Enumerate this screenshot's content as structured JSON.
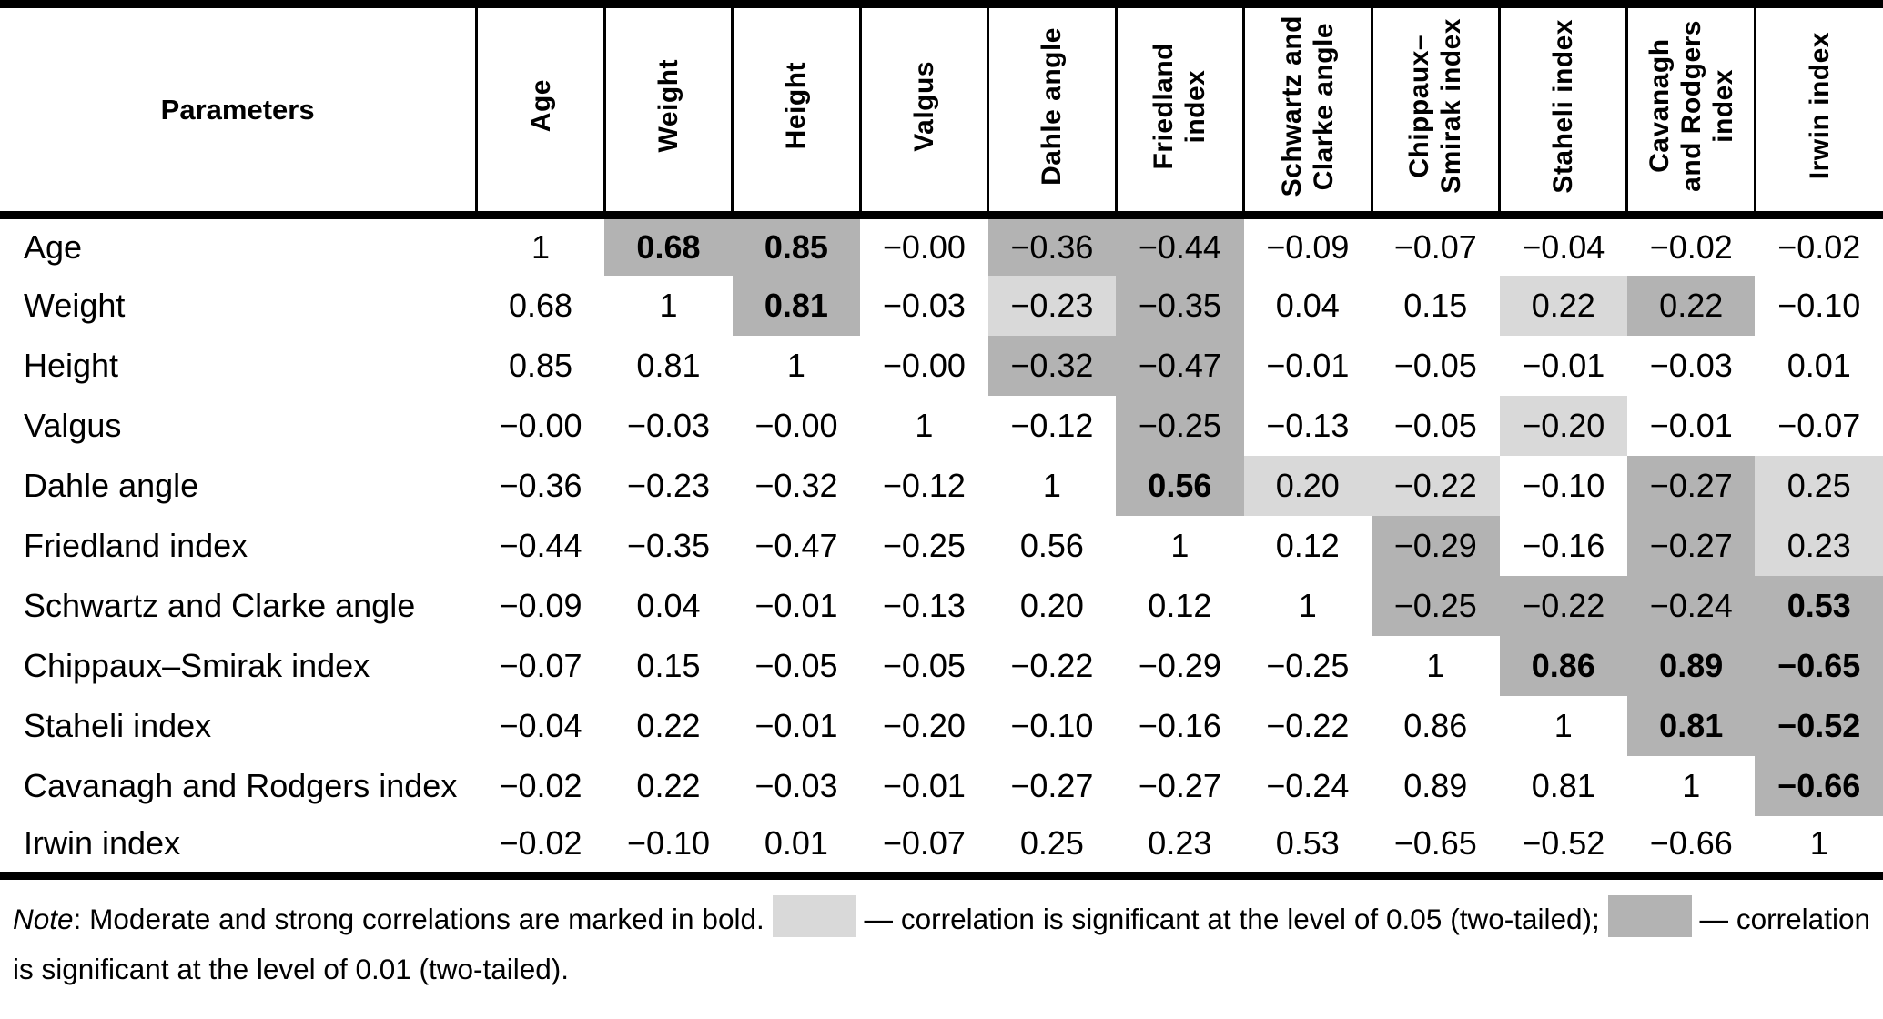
{
  "colors": {
    "sig05": "#d9d9d9",
    "sig01": "#b3b3b3",
    "border": "#000000",
    "text": "#000000",
    "background": "#ffffff"
  },
  "table": {
    "corner_header": "Parameters",
    "column_headers": [
      "Age",
      "Weight",
      "Height",
      "Valgus",
      "Dahle angle",
      "Friedland\nindex",
      "Schwartz and\nClarke angle",
      "Chippaux–\nSmirak index",
      "Staheli index",
      "Cavanagh\nand Rodgers\nindex",
      "Irwin index"
    ],
    "rows": [
      {
        "label": "Age",
        "cells": [
          {
            "v": "1"
          },
          {
            "v": "0.68",
            "b": true,
            "s": "p01"
          },
          {
            "v": "0.85",
            "b": true,
            "s": "p01"
          },
          {
            "v": "−0.00"
          },
          {
            "v": "−0.36",
            "s": "p01"
          },
          {
            "v": "−0.44",
            "s": "p01"
          },
          {
            "v": "−0.09"
          },
          {
            "v": "−0.07"
          },
          {
            "v": "−0.04"
          },
          {
            "v": "−0.02"
          },
          {
            "v": "−0.02"
          }
        ]
      },
      {
        "label": "Weight",
        "cells": [
          {
            "v": "0.68"
          },
          {
            "v": "1"
          },
          {
            "v": "0.81",
            "b": true,
            "s": "p01"
          },
          {
            "v": "−0.03"
          },
          {
            "v": "−0.23",
            "s": "p05"
          },
          {
            "v": "−0.35",
            "s": "p01"
          },
          {
            "v": "0.04"
          },
          {
            "v": "0.15"
          },
          {
            "v": "0.22",
            "s": "p05"
          },
          {
            "v": "0.22",
            "s": "p01"
          },
          {
            "v": "−0.10"
          }
        ]
      },
      {
        "label": "Height",
        "cells": [
          {
            "v": "0.85"
          },
          {
            "v": "0.81"
          },
          {
            "v": "1"
          },
          {
            "v": "−0.00"
          },
          {
            "v": "−0.32",
            "s": "p01"
          },
          {
            "v": "−0.47",
            "s": "p01"
          },
          {
            "v": "−0.01"
          },
          {
            "v": "−0.05"
          },
          {
            "v": "−0.01"
          },
          {
            "v": "−0.03"
          },
          {
            "v": "0.01"
          }
        ]
      },
      {
        "label": "Valgus",
        "cells": [
          {
            "v": "−0.00"
          },
          {
            "v": "−0.03"
          },
          {
            "v": "−0.00"
          },
          {
            "v": "1"
          },
          {
            "v": "−0.12"
          },
          {
            "v": "−0.25",
            "s": "p01"
          },
          {
            "v": "−0.13"
          },
          {
            "v": "−0.05"
          },
          {
            "v": "−0.20",
            "s": "p05"
          },
          {
            "v": "−0.01"
          },
          {
            "v": "−0.07"
          }
        ]
      },
      {
        "label": "Dahle angle",
        "cells": [
          {
            "v": "−0.36"
          },
          {
            "v": "−0.23"
          },
          {
            "v": "−0.32"
          },
          {
            "v": "−0.12"
          },
          {
            "v": "1"
          },
          {
            "v": "0.56",
            "b": true,
            "s": "p01"
          },
          {
            "v": "0.20",
            "s": "p05"
          },
          {
            "v": "−0.22",
            "s": "p05"
          },
          {
            "v": "−0.10"
          },
          {
            "v": "−0.27",
            "s": "p01"
          },
          {
            "v": "0.25",
            "s": "p05"
          }
        ]
      },
      {
        "label": "Friedland index",
        "cells": [
          {
            "v": "−0.44"
          },
          {
            "v": "−0.35"
          },
          {
            "v": "−0.47"
          },
          {
            "v": "−0.25"
          },
          {
            "v": "0.56"
          },
          {
            "v": "1"
          },
          {
            "v": "0.12"
          },
          {
            "v": "−0.29",
            "s": "p01"
          },
          {
            "v": "−0.16"
          },
          {
            "v": "−0.27",
            "s": "p01"
          },
          {
            "v": "0.23",
            "s": "p05"
          }
        ]
      },
      {
        "label": "Schwartz and Clarke angle",
        "cells": [
          {
            "v": "−0.09"
          },
          {
            "v": "0.04"
          },
          {
            "v": "−0.01"
          },
          {
            "v": "−0.13"
          },
          {
            "v": "0.20"
          },
          {
            "v": "0.12"
          },
          {
            "v": "1"
          },
          {
            "v": "−0.25",
            "s": "p01"
          },
          {
            "v": "−0.22",
            "s": "p01"
          },
          {
            "v": "−0.24",
            "s": "p01"
          },
          {
            "v": "0.53",
            "b": true,
            "s": "p01"
          }
        ]
      },
      {
        "label": "Chippaux–Smirak index",
        "cells": [
          {
            "v": "−0.07"
          },
          {
            "v": "0.15"
          },
          {
            "v": "−0.05"
          },
          {
            "v": "−0.05"
          },
          {
            "v": "−0.22"
          },
          {
            "v": "−0.29"
          },
          {
            "v": "−0.25"
          },
          {
            "v": "1"
          },
          {
            "v": "0.86",
            "b": true,
            "s": "p01"
          },
          {
            "v": "0.89",
            "b": true,
            "s": "p01"
          },
          {
            "v": "−0.65",
            "b": true,
            "s": "p01"
          }
        ]
      },
      {
        "label": "Staheli index",
        "cells": [
          {
            "v": "−0.04"
          },
          {
            "v": "0.22"
          },
          {
            "v": "−0.01"
          },
          {
            "v": "−0.20"
          },
          {
            "v": "−0.10"
          },
          {
            "v": "−0.16"
          },
          {
            "v": "−0.22"
          },
          {
            "v": "0.86"
          },
          {
            "v": "1"
          },
          {
            "v": "0.81",
            "b": true,
            "s": "p01"
          },
          {
            "v": "−0.52",
            "b": true,
            "s": "p01"
          }
        ]
      },
      {
        "label": "Cavanagh and Rodgers index",
        "cells": [
          {
            "v": "−0.02"
          },
          {
            "v": "0.22"
          },
          {
            "v": "−0.03"
          },
          {
            "v": "−0.01"
          },
          {
            "v": "−0.27"
          },
          {
            "v": "−0.27"
          },
          {
            "v": "−0.24"
          },
          {
            "v": "0.89"
          },
          {
            "v": "0.81"
          },
          {
            "v": "1"
          },
          {
            "v": "−0.66",
            "b": true,
            "s": "p01"
          }
        ]
      },
      {
        "label": "Irwin index",
        "cells": [
          {
            "v": "−0.02"
          },
          {
            "v": "−0.10"
          },
          {
            "v": "0.01"
          },
          {
            "v": "−0.07"
          },
          {
            "v": "0.25"
          },
          {
            "v": "0.23"
          },
          {
            "v": "0.53"
          },
          {
            "v": "−0.65"
          },
          {
            "v": "−0.52"
          },
          {
            "v": "−0.66"
          },
          {
            "v": "1"
          }
        ]
      }
    ]
  },
  "legend": {
    "note_label": "Note",
    "bold_note": ": Moderate and strong correlations are marked in bold. ",
    "sig05_label": " — correlation is significant at the level of 0.05 (two-tailed); ",
    "sig01_label": " — correlation is significant at the level of 0.01 (two-tailed)."
  }
}
